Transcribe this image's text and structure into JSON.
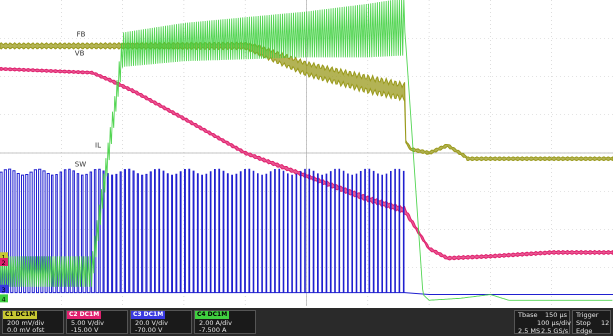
{
  "chart_data": {
    "type": "line",
    "title": "",
    "xlabel": "",
    "ylabel": "",
    "grid": true,
    "x_divisions": 10,
    "y_divisions": 8,
    "x_unit": "div",
    "series": [
      {
        "name": "FB",
        "color": "#9a9a1c",
        "style": "band",
        "x": [
          0.0,
          1.5,
          4.0,
          4.2,
          5.0,
          6.0,
          6.6,
          6.62,
          6.7,
          7.0,
          7.3,
          7.6,
          7.62,
          7.8,
          8.5,
          10.0
        ],
        "y": [
          6.8,
          6.8,
          6.8,
          6.7,
          6.2,
          5.8,
          5.6,
          4.3,
          4.1,
          4.0,
          4.2,
          3.9,
          3.85,
          3.85,
          3.85,
          3.85
        ],
        "band": [
          0.08,
          0.08,
          0.1,
          0.15,
          0.2,
          0.25,
          0.25,
          0.05,
          0.05,
          0.05,
          0.05,
          0.05,
          0.05,
          0.05,
          0.05,
          0.05
        ]
      },
      {
        "name": "VB",
        "color": "#e0206e",
        "style": "band",
        "x": [
          0.0,
          1.5,
          1.8,
          2.2,
          3.0,
          4.0,
          5.0,
          6.0,
          6.6,
          6.8,
          7.0,
          7.3,
          8.0,
          9.0,
          10.0
        ],
        "y": [
          6.2,
          6.1,
          5.9,
          5.6,
          4.9,
          4.0,
          3.4,
          2.8,
          2.5,
          2.0,
          1.5,
          1.25,
          1.3,
          1.4,
          1.4
        ],
        "band": [
          0.04,
          0.04,
          0.05,
          0.05,
          0.05,
          0.05,
          0.06,
          0.08,
          0.1,
          0.06,
          0.05,
          0.05,
          0.05,
          0.05,
          0.05
        ]
      },
      {
        "name": "SW",
        "color": "#2020d0",
        "style": "pwm",
        "low": 0.35,
        "high": 3.5,
        "x_start": 0.0,
        "x_end": 6.6,
        "period": 0.07,
        "duty": [
          0.5,
          0.35,
          0.25,
          0.2,
          0.18,
          0.15,
          0.15,
          0.15
        ],
        "tail_x": [
          6.6,
          7.0,
          10.0
        ],
        "tail_y": [
          0.35,
          0.3,
          0.3
        ]
      },
      {
        "name": "IL",
        "color": "#40d040",
        "style": "ripple",
        "x_env": [
          0.0,
          1.5,
          1.9,
          2.0,
          3.0,
          4.0,
          5.0,
          6.0,
          6.6,
          6.9,
          7.0,
          7.5,
          8.0,
          8.3,
          10.0
        ],
        "y_center": [
          0.9,
          0.9,
          5.5,
          6.7,
          6.9,
          7.0,
          7.1,
          7.2,
          7.3,
          0.3,
          0.15,
          0.2,
          0.3,
          0.15,
          0.15
        ],
        "y_amp": [
          0.4,
          0.4,
          0.3,
          0.45,
          0.5,
          0.55,
          0.6,
          0.7,
          0.75,
          0.05,
          0.05,
          0.05,
          0.05,
          0.05,
          0.05
        ],
        "x_ripple_end": 6.6
      }
    ],
    "annotations": [
      "FB",
      "VB",
      "IL",
      "SW",
      "1",
      "2",
      "3",
      "4"
    ]
  },
  "footer": {
    "channels": [
      {
        "id": "C1",
        "tag": "DC1M",
        "color": "#c8c832",
        "line1": "200 mV/div",
        "line2": "0.0 mV ofst"
      },
      {
        "id": "C2",
        "tag": "DC1M",
        "color": "#e0206e",
        "line1": "5.00 V/div",
        "line2": "-15.00 V"
      },
      {
        "id": "C3",
        "tag": "DC1M",
        "color": "#3a3ae0",
        "line1": "20.0 V/div",
        "line2": "-70.00 V"
      },
      {
        "id": "C4",
        "tag": "DC1M",
        "color": "#40d040",
        "line1": "2.00 A/div",
        "line2": "-7.500 A"
      }
    ],
    "timebase": {
      "label": "Tbase",
      "value": "150 µs",
      "line2a": "100 µs/div",
      "line3a": "2.5 MS",
      "line3b": "2.5 GS/s"
    },
    "trigger": {
      "label": "Trigger",
      "line2": "Stop",
      "value2": "12",
      "line3": "Edge"
    }
  }
}
